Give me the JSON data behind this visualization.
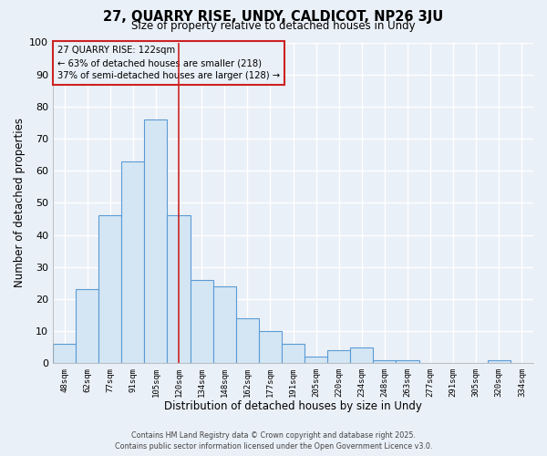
{
  "title": "27, QUARRY RISE, UNDY, CALDICOT, NP26 3JU",
  "subtitle": "Size of property relative to detached houses in Undy",
  "xlabel": "Distribution of detached houses by size in Undy",
  "ylabel": "Number of detached properties",
  "bar_labels": [
    "48sqm",
    "62sqm",
    "77sqm",
    "91sqm",
    "105sqm",
    "120sqm",
    "134sqm",
    "148sqm",
    "162sqm",
    "177sqm",
    "191sqm",
    "205sqm",
    "220sqm",
    "234sqm",
    "248sqm",
    "263sqm",
    "277sqm",
    "291sqm",
    "305sqm",
    "320sqm",
    "334sqm"
  ],
  "bar_values": [
    6,
    23,
    46,
    63,
    76,
    46,
    26,
    24,
    14,
    10,
    6,
    2,
    4,
    5,
    1,
    1,
    0,
    0,
    0,
    1,
    0
  ],
  "bar_color": "#d4e6f4",
  "bar_edgecolor": "#5b9bd5",
  "vline_x_index": 5,
  "vline_color": "#cc2222",
  "annotation_text": "27 QUARRY RISE: 122sqm\n← 63% of detached houses are smaller (218)\n37% of semi-detached houses are larger (128) →",
  "ylim": [
    0,
    100
  ],
  "yticks": [
    0,
    10,
    20,
    30,
    40,
    50,
    60,
    70,
    80,
    90,
    100
  ],
  "bg_color": "#eaf0f7",
  "grid_color": "#ffffff",
  "footer_line1": "Contains HM Land Registry data © Crown copyright and database right 2025.",
  "footer_line2": "Contains public sector information licensed under the Open Government Licence v3.0."
}
